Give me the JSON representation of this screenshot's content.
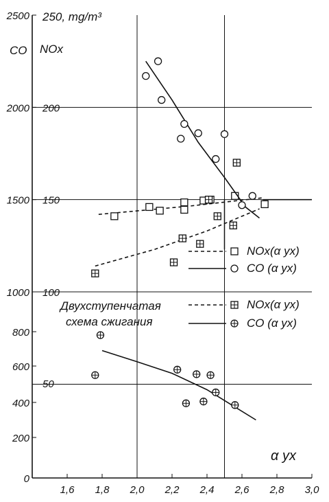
{
  "chart_data": {
    "type": "scatter",
    "x_axis": {
      "label": "α yx",
      "ticks": [
        "1,6",
        "1,8",
        "2,0",
        "2,2",
        "2,4",
        "2,6",
        "2,8",
        "3,0"
      ],
      "range": [
        1.4,
        3.0
      ]
    },
    "y_axis_left": {
      "label": "CO",
      "unit_top": "2500",
      "ticks": [
        "0",
        "200",
        "400",
        "600",
        "800",
        "1000",
        "1500",
        "2000",
        "2500"
      ]
    },
    "y_axis_inner": {
      "label": "NOx",
      "unit": "250, mg/m³",
      "ticks": [
        "50",
        "100",
        "150",
        "200",
        "250"
      ]
    },
    "legend": {
      "group_title_line1": "Двухступенчатая",
      "group_title_line2": "схема сжигания",
      "entries": [
        {
          "label": "NOx(α yx)",
          "style": "dashed",
          "marker": "square"
        },
        {
          "label": "CO (α yx)",
          "style": "solid",
          "marker": "circle"
        },
        {
          "label": "NOx(α yx)",
          "style": "dashed",
          "marker": "square-plus"
        },
        {
          "label": "CO (α yx)",
          "style": "solid",
          "marker": "circle-plus"
        }
      ]
    },
    "series": [
      {
        "marker": "square",
        "axis": "NOx",
        "points": [
          [
            1.87,
            141
          ],
          [
            2.07,
            146
          ],
          [
            2.13,
            144
          ],
          [
            2.27,
            148.5
          ],
          [
            2.27,
            144.5
          ],
          [
            2.38,
            149.5
          ],
          [
            2.42,
            150
          ],
          [
            2.56,
            152
          ],
          [
            2.73,
            147.5
          ]
        ],
        "fit": [
          [
            1.78,
            142
          ],
          [
            2.3,
            146.5
          ],
          [
            2.72,
            151
          ]
        ]
      },
      {
        "marker": "circle",
        "axis": "CO",
        "points": [
          [
            2.05,
            2170
          ],
          [
            2.12,
            2250
          ],
          [
            2.14,
            2040
          ],
          [
            2.25,
            1830
          ],
          [
            2.27,
            1910
          ],
          [
            2.35,
            1860
          ],
          [
            2.45,
            1720
          ],
          [
            2.5,
            1855
          ],
          [
            2.6,
            1470
          ],
          [
            2.66,
            1520
          ]
        ],
        "fit": [
          [
            2.05,
            2250
          ],
          [
            2.2,
            2040
          ],
          [
            2.35,
            1810
          ],
          [
            2.5,
            1620
          ],
          [
            2.62,
            1460
          ],
          [
            2.7,
            1400
          ]
        ]
      },
      {
        "marker": "square-plus",
        "axis": "NOx",
        "points": [
          [
            1.76,
            110
          ],
          [
            2.21,
            116
          ],
          [
            2.26,
            129
          ],
          [
            2.36,
            126
          ],
          [
            2.41,
            150
          ],
          [
            2.46,
            141
          ],
          [
            2.55,
            136
          ],
          [
            2.57,
            170
          ]
        ],
        "fit": [
          [
            1.76,
            114
          ],
          [
            2.1,
            123
          ],
          [
            2.4,
            133
          ],
          [
            2.7,
            145
          ]
        ]
      },
      {
        "marker": "circle-plus",
        "axis": "CO_low",
        "points": [
          [
            1.79,
            780
          ],
          [
            1.76,
            550
          ],
          [
            2.23,
            580
          ],
          [
            2.28,
            395
          ],
          [
            2.34,
            555
          ],
          [
            2.38,
            405
          ],
          [
            2.42,
            550
          ],
          [
            2.45,
            455
          ],
          [
            2.56,
            385
          ]
        ],
        "fit": [
          [
            1.8,
            690
          ],
          [
            2.0,
            625
          ],
          [
            2.2,
            560
          ],
          [
            2.4,
            470
          ],
          [
            2.55,
            380
          ],
          [
            2.68,
            300
          ]
        ]
      }
    ]
  }
}
